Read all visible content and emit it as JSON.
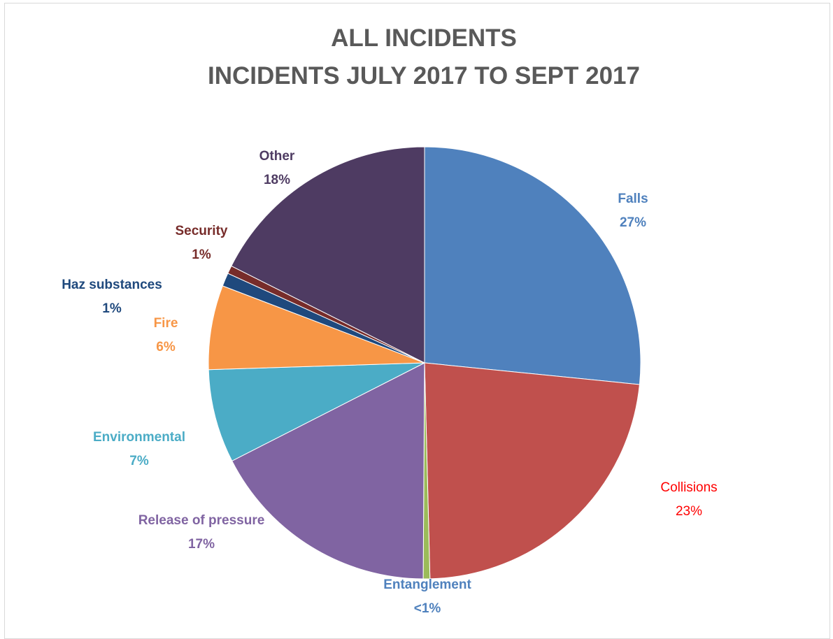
{
  "chart_data": {
    "type": "pie",
    "title_lines": [
      "ALL INCIDENTS",
      "INCIDENTS JULY 2017 TO SEPT 2017"
    ],
    "slices": [
      {
        "label": "Falls",
        "value": 26.6,
        "display": "27%",
        "color": "#4f81bd",
        "label_color": "#4f81bd",
        "bold": true
      },
      {
        "label": "Collisions",
        "value": 23.0,
        "display": "23%",
        "color": "#c0504d",
        "label_color": "#ff0000",
        "bold": false
      },
      {
        "label": "Entanglement",
        "value": 0.5,
        "display": "<1%",
        "color": "#9bbb59",
        "label_color": "#4f81bd",
        "bold": true
      },
      {
        "label": "Release of pressure",
        "value": 17.4,
        "display": "17%",
        "color": "#8064a2",
        "label_color": "#8064a2",
        "bold": true
      },
      {
        "label": "Environmental",
        "value": 7.0,
        "display": "7%",
        "color": "#4bacc6",
        "label_color": "#4bacc6",
        "bold": true
      },
      {
        "label": "Fire",
        "value": 6.3,
        "display": "6%",
        "color": "#f79646",
        "label_color": "#f79646",
        "bold": true
      },
      {
        "label": "Haz substances",
        "value": 1.0,
        "display": "1%",
        "color": "#1f497d",
        "label_color": "#1f497d",
        "bold": true
      },
      {
        "label": "Security",
        "value": 0.6,
        "display": "1%",
        "color": "#772c2a",
        "label_color": "#772c2a",
        "bold": true
      },
      {
        "label": "Other",
        "value": 17.6,
        "display": "18%",
        "color": "#4e3b62",
        "label_color": "#4e3b62",
        "bold": true
      }
    ]
  }
}
